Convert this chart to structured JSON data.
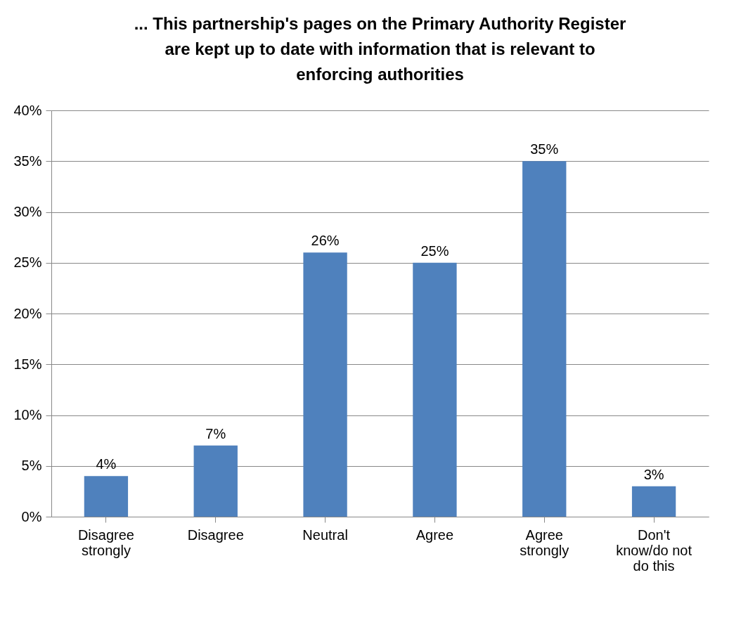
{
  "chart_data": {
    "type": "bar",
    "title": "... This partnership's pages on the Primary Authority Register are kept up to date with information that is relevant to enforcing authorities",
    "categories": [
      "Disagree strongly",
      "Disagree",
      "Neutral",
      "Agree",
      "Agree strongly",
      "Don't know/do not do this"
    ],
    "values": [
      4,
      7,
      26,
      25,
      35,
      3
    ],
    "value_labels": [
      "4%",
      "7%",
      "26%",
      "25%",
      "35%",
      "3%"
    ],
    "color": "#4f81bd",
    "ylim": [
      0,
      40
    ],
    "yticks": [
      {
        "value": 0,
        "label": "0%"
      },
      {
        "value": 5,
        "label": "5%"
      },
      {
        "value": 10,
        "label": "10%"
      },
      {
        "value": 15,
        "label": "15%"
      },
      {
        "value": 20,
        "label": "20%"
      },
      {
        "value": 25,
        "label": "25%"
      },
      {
        "value": 30,
        "label": "30%"
      },
      {
        "value": 35,
        "label": "35%"
      },
      {
        "value": 40,
        "label": "40%"
      }
    ],
    "grid": "y"
  }
}
